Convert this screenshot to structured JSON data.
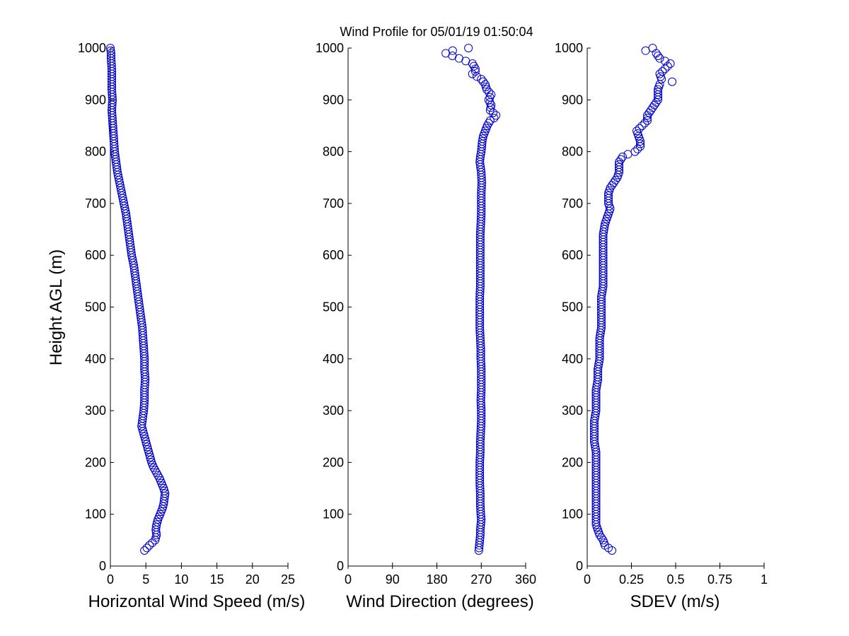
{
  "title": "Wind Profile for  05/01/19 01:50:04",
  "chart_data": [
    {
      "type": "scatter",
      "xlabel": "Horizontal Wind Speed (m/s)",
      "ylabel": "Height AGL (m)",
      "xlim": [
        0,
        25
      ],
      "ylim": [
        0,
        1000
      ],
      "xticks": [
        0,
        5,
        10,
        15,
        20,
        25
      ],
      "xtick_labels": [
        "0",
        "5",
        "10",
        "15",
        "20",
        "25"
      ],
      "yticks": [
        0,
        100,
        200,
        300,
        400,
        500,
        600,
        700,
        800,
        900,
        1000
      ],
      "ytick_labels": [
        "0",
        "100",
        "200",
        "300",
        "400",
        "500",
        "600",
        "700",
        "800",
        "900",
        "1000"
      ],
      "grid": false,
      "profile": [
        [
          30,
          4.8
        ],
        [
          40,
          5.5
        ],
        [
          50,
          6.3
        ],
        [
          60,
          6.5
        ],
        [
          70,
          6.4
        ],
        [
          80,
          6.5
        ],
        [
          90,
          6.7
        ],
        [
          100,
          7.0
        ],
        [
          110,
          7.3
        ],
        [
          120,
          7.5
        ],
        [
          130,
          7.6
        ],
        [
          140,
          7.7
        ],
        [
          150,
          7.5
        ],
        [
          160,
          7.2
        ],
        [
          170,
          6.9
        ],
        [
          180,
          6.5
        ],
        [
          190,
          6.1
        ],
        [
          200,
          5.8
        ],
        [
          210,
          5.6
        ],
        [
          220,
          5.4
        ],
        [
          230,
          5.2
        ],
        [
          240,
          5.0
        ],
        [
          250,
          4.8
        ],
        [
          260,
          4.6
        ],
        [
          270,
          4.4
        ],
        [
          280,
          4.5
        ],
        [
          290,
          4.6
        ],
        [
          300,
          4.7
        ],
        [
          320,
          4.8
        ],
        [
          340,
          4.8
        ],
        [
          360,
          4.9
        ],
        [
          380,
          4.8
        ],
        [
          400,
          4.8
        ],
        [
          420,
          4.7
        ],
        [
          440,
          4.6
        ],
        [
          460,
          4.5
        ],
        [
          480,
          4.3
        ],
        [
          500,
          4.1
        ],
        [
          520,
          3.9
        ],
        [
          540,
          3.7
        ],
        [
          560,
          3.5
        ],
        [
          580,
          3.3
        ],
        [
          600,
          3.0
        ],
        [
          620,
          2.8
        ],
        [
          640,
          2.6
        ],
        [
          660,
          2.4
        ],
        [
          680,
          2.2
        ],
        [
          700,
          1.9
        ],
        [
          720,
          1.6
        ],
        [
          740,
          1.3
        ],
        [
          760,
          1.0
        ],
        [
          780,
          0.8
        ],
        [
          800,
          0.6
        ],
        [
          820,
          0.5
        ],
        [
          840,
          0.4
        ],
        [
          860,
          0.3
        ],
        [
          880,
          0.2
        ],
        [
          900,
          0.3
        ],
        [
          920,
          0.2
        ],
        [
          940,
          0.2
        ],
        [
          960,
          0.2
        ],
        [
          980,
          0.1
        ],
        [
          990,
          0.1
        ],
        [
          1000,
          0.0
        ]
      ]
    },
    {
      "type": "scatter",
      "xlabel": "Wind Direction (degrees)",
      "ylabel": "",
      "xlim": [
        0,
        360
      ],
      "ylim": [
        0,
        1000
      ],
      "xticks": [
        0,
        90,
        180,
        270,
        360
      ],
      "xtick_labels": [
        "0",
        "90",
        "180",
        "270",
        "360"
      ],
      "yticks": [
        0,
        100,
        200,
        300,
        400,
        500,
        600,
        700,
        800,
        900,
        1000
      ],
      "ytick_labels": [
        "0",
        "100",
        "200",
        "300",
        "400",
        "500",
        "600",
        "700",
        "800",
        "900",
        "1000"
      ],
      "grid": false,
      "profile": [
        [
          30,
          265
        ],
        [
          40,
          266
        ],
        [
          50,
          267
        ],
        [
          60,
          268
        ],
        [
          70,
          268
        ],
        [
          80,
          269
        ],
        [
          90,
          270
        ],
        [
          100,
          269
        ],
        [
          120,
          268
        ],
        [
          140,
          268
        ],
        [
          160,
          267
        ],
        [
          180,
          267
        ],
        [
          200,
          267
        ],
        [
          220,
          268
        ],
        [
          240,
          268
        ],
        [
          260,
          269
        ],
        [
          280,
          270
        ],
        [
          300,
          270
        ],
        [
          320,
          269
        ],
        [
          340,
          270
        ],
        [
          360,
          270
        ],
        [
          380,
          270
        ],
        [
          400,
          269
        ],
        [
          420,
          269
        ],
        [
          440,
          268
        ],
        [
          460,
          267
        ],
        [
          480,
          267
        ],
        [
          500,
          267
        ],
        [
          520,
          267
        ],
        [
          540,
          268
        ],
        [
          560,
          268
        ],
        [
          580,
          268
        ],
        [
          600,
          268
        ],
        [
          620,
          268
        ],
        [
          640,
          268
        ],
        [
          660,
          269
        ],
        [
          680,
          270
        ],
        [
          700,
          270
        ],
        [
          720,
          270
        ],
        [
          740,
          271
        ],
        [
          760,
          270
        ],
        [
          780,
          267
        ],
        [
          790,
          268
        ],
        [
          800,
          270
        ],
        [
          820,
          272
        ],
        [
          830,
          274
        ],
        [
          840,
          278
        ],
        [
          850,
          282
        ],
        [
          860,
          288
        ],
        [
          865,
          296
        ],
        [
          870,
          300
        ],
        [
          880,
          288
        ],
        [
          890,
          290
        ],
        [
          900,
          285
        ],
        [
          910,
          290
        ],
        [
          920,
          281
        ],
        [
          930,
          278
        ],
        [
          940,
          270
        ],
        [
          950,
          252
        ],
        [
          955,
          258
        ],
        [
          960,
          258
        ],
        [
          970,
          252
        ],
        [
          980,
          225
        ],
        [
          990,
          198
        ],
        [
          995,
          212
        ],
        [
          1000,
          244
        ]
      ]
    },
    {
      "type": "scatter",
      "xlabel": "SDEV  (m/s)",
      "ylabel": "",
      "xlim": [
        0,
        1
      ],
      "ylim": [
        0,
        1000
      ],
      "xticks": [
        0,
        0.25,
        0.5,
        0.75,
        1
      ],
      "xtick_labels": [
        "0",
        "0.25",
        "0.5",
        "0.75",
        "1"
      ],
      "yticks": [
        0,
        100,
        200,
        300,
        400,
        500,
        600,
        700,
        800,
        900,
        1000
      ],
      "ytick_labels": [
        "0",
        "100",
        "200",
        "300",
        "400",
        "500",
        "600",
        "700",
        "800",
        "900",
        "1000"
      ],
      "grid": false,
      "profile": [
        [
          30,
          0.14
        ],
        [
          40,
          0.1
        ],
        [
          50,
          0.09
        ],
        [
          60,
          0.07
        ],
        [
          80,
          0.05
        ],
        [
          100,
          0.05
        ],
        [
          120,
          0.05
        ],
        [
          140,
          0.05
        ],
        [
          160,
          0.05
        ],
        [
          180,
          0.05
        ],
        [
          200,
          0.05
        ],
        [
          220,
          0.05
        ],
        [
          240,
          0.04
        ],
        [
          260,
          0.04
        ],
        [
          280,
          0.04
        ],
        [
          300,
          0.05
        ],
        [
          320,
          0.05
        ],
        [
          340,
          0.05
        ],
        [
          360,
          0.06
        ],
        [
          380,
          0.06
        ],
        [
          400,
          0.07
        ],
        [
          420,
          0.07
        ],
        [
          440,
          0.07
        ],
        [
          460,
          0.08
        ],
        [
          480,
          0.08
        ],
        [
          500,
          0.08
        ],
        [
          520,
          0.08
        ],
        [
          540,
          0.09
        ],
        [
          560,
          0.09
        ],
        [
          580,
          0.09
        ],
        [
          600,
          0.09
        ],
        [
          620,
          0.09
        ],
        [
          640,
          0.09
        ],
        [
          660,
          0.1
        ],
        [
          670,
          0.11
        ],
        [
          680,
          0.12
        ],
        [
          690,
          0.13
        ],
        [
          700,
          0.12
        ],
        [
          720,
          0.12
        ],
        [
          730,
          0.13
        ],
        [
          740,
          0.15
        ],
        [
          750,
          0.17
        ],
        [
          760,
          0.18
        ],
        [
          770,
          0.18
        ],
        [
          780,
          0.18
        ],
        [
          790,
          0.2
        ],
        [
          795,
          0.23
        ],
        [
          800,
          0.27
        ],
        [
          810,
          0.3
        ],
        [
          820,
          0.3
        ],
        [
          830,
          0.29
        ],
        [
          840,
          0.28
        ],
        [
          850,
          0.31
        ],
        [
          860,
          0.34
        ],
        [
          870,
          0.34
        ],
        [
          880,
          0.36
        ],
        [
          890,
          0.38
        ],
        [
          900,
          0.4
        ],
        [
          910,
          0.4
        ],
        [
          920,
          0.4
        ],
        [
          930,
          0.41
        ],
        [
          935,
          0.48
        ],
        [
          940,
          0.42
        ],
        [
          950,
          0.41
        ],
        [
          960,
          0.44
        ],
        [
          970,
          0.47
        ],
        [
          980,
          0.41
        ],
        [
          990,
          0.39
        ],
        [
          995,
          0.33
        ],
        [
          1000,
          0.37
        ]
      ]
    }
  ]
}
